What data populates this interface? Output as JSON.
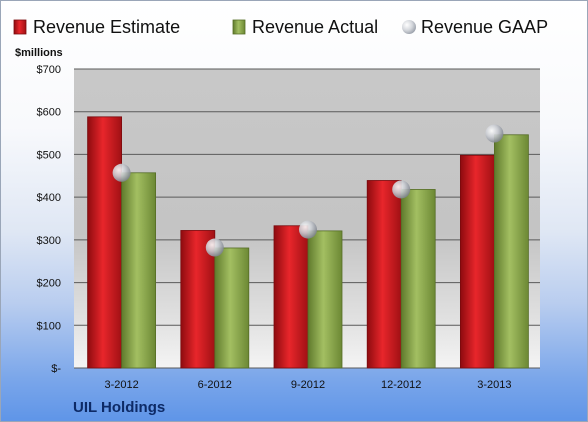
{
  "company": "UIL Holdings",
  "chart_data": {
    "type": "bar",
    "categories": [
      "3-2012",
      "6-2012",
      "9-2012",
      "12-2012",
      "3-2013"
    ],
    "series": [
      {
        "name": "Revenue Estimate",
        "values": [
          588,
          322,
          333,
          439,
          498
        ],
        "color": "#d0181e"
      },
      {
        "name": "Revenue Actual",
        "values": [
          457,
          281,
          321,
          418,
          546
        ],
        "color": "#8aa84a"
      },
      {
        "name": "Revenue GAAP",
        "values": [
          457,
          282,
          324,
          418,
          549
        ],
        "color": "#c8ccd4",
        "marker": "sphere"
      }
    ],
    "ylabel": "$millions",
    "ylim": [
      0,
      700
    ],
    "yticks": [
      0,
      100,
      200,
      300,
      400,
      500,
      600,
      700
    ],
    "ytick_labels": [
      "$-",
      "$100",
      "$200",
      "$300",
      "$400",
      "$500",
      "$600",
      "$700"
    ],
    "grid": true,
    "legend_position": "top"
  }
}
